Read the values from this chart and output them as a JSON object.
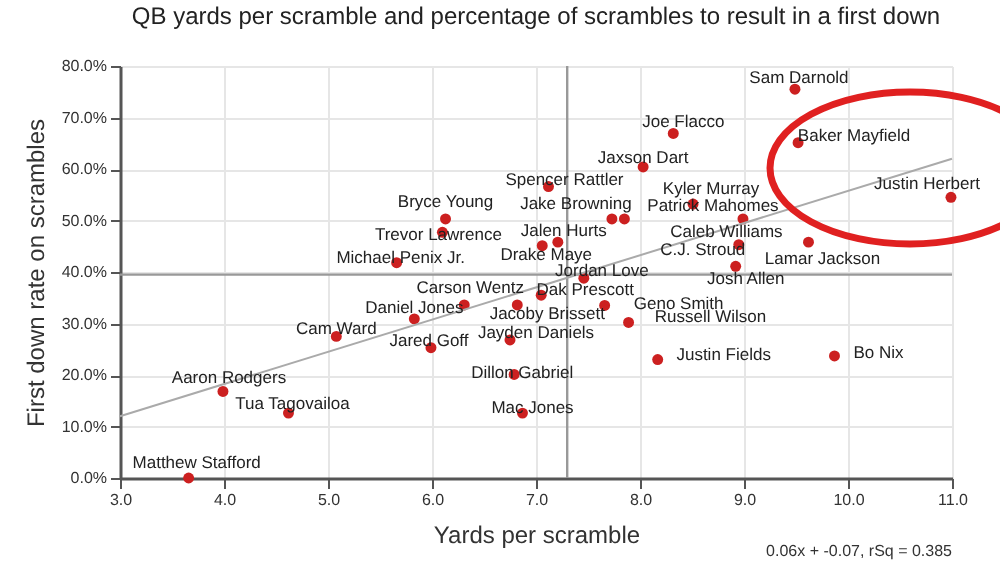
{
  "chart_data": {
    "type": "scatter",
    "title": "QB yards per scramble and percentage of scrambles to result in a first down",
    "xlabel": "Yards per scramble",
    "ylabel": "First down rate on scrambles",
    "x": [
      9.49,
      8.32,
      9.52,
      8.03,
      10.99,
      7.12,
      8.51,
      7.73,
      7.85,
      8.99,
      8.95,
      8.92,
      9.62,
      6.13,
      6.1,
      7.21,
      7.06,
      5.66,
      7.46,
      6.31,
      7.05,
      7.66,
      5.83,
      6.82,
      7.89,
      6.75,
      5.08,
      5.99,
      8.17,
      9.87,
      6.79,
      3.99,
      6.87,
      4.62,
      3.66
    ],
    "series": [
      {
        "color": "#cc2020",
        "values": [
          75.5,
          66.9,
          65.1,
          60.4,
          54.5,
          56.6,
          53.2,
          50.3,
          50.3,
          50.3,
          45.3,
          41.1,
          45.8,
          50.3,
          47.7,
          45.8,
          45.1,
          41.8,
          38.8,
          33.6,
          35.5,
          33.5,
          30.9,
          33.6,
          30.2,
          26.8,
          27.5,
          25.3,
          23.0,
          23.7,
          20.1,
          16.8,
          12.6,
          12.6,
          0.0
        ]
      },
      {
        "type": "line",
        "marker": "none",
        "color": "#aaaaaa",
        "x": [
          3,
          11
        ],
        "values": [
          12,
          62
        ]
      }
    ],
    "annotations": [
      {
        "text": "Sam Darnold",
        "x": 9.49,
        "y": 75.5
      },
      {
        "text": "Joe Flacco",
        "x": 8.32,
        "y": 66.9
      },
      {
        "text": "Baker Mayfield",
        "x": 9.52,
        "y": 65.1
      },
      {
        "text": "Jaxson Dart",
        "x": 8.03,
        "y": 60.4
      },
      {
        "text": "Justin Herbert",
        "x": 10.99,
        "y": 54.5
      },
      {
        "text": "Spencer Rattler",
        "x": 7.12,
        "y": 56.6
      },
      {
        "text": "Kyler Murray",
        "x": 8.51,
        "y": 53.2
      },
      {
        "text": "Jake Browning",
        "x": 7.73,
        "y": 50.3
      },
      {
        "text": "Caleb Williams",
        "x": 7.85,
        "y": 50.3
      },
      {
        "text": "Patrick Mahomes",
        "x": 8.99,
        "y": 50.3
      },
      {
        "text": "C.J. Stroud",
        "x": 8.95,
        "y": 45.3
      },
      {
        "text": "Josh Allen",
        "x": 8.92,
        "y": 41.1
      },
      {
        "text": "Lamar Jackson",
        "x": 9.62,
        "y": 45.8
      },
      {
        "text": "Bryce Young",
        "x": 6.13,
        "y": 50.3
      },
      {
        "text": "Trevor Lawrence",
        "x": 6.1,
        "y": 47.7
      },
      {
        "text": "Jalen Hurts",
        "x": 7.21,
        "y": 45.8
      },
      {
        "text": "Drake Maye",
        "x": 7.06,
        "y": 45.1
      },
      {
        "text": "Michael Penix Jr.",
        "x": 5.66,
        "y": 41.8
      },
      {
        "text": "Jordan Love",
        "x": 7.46,
        "y": 38.8
      },
      {
        "text": "Carson Wentz",
        "x": 6.31,
        "y": 33.6
      },
      {
        "text": "Dak Prescott",
        "x": 7.05,
        "y": 35.5
      },
      {
        "text": "Geno Smith",
        "x": 7.66,
        "y": 33.5
      },
      {
        "text": "Daniel Jones",
        "x": 5.83,
        "y": 30.9
      },
      {
        "text": "Jacoby Brissett",
        "x": 6.82,
        "y": 33.6
      },
      {
        "text": "Russell Wilson",
        "x": 7.89,
        "y": 30.2
      },
      {
        "text": "Jayden Daniels",
        "x": 6.75,
        "y": 26.8
      },
      {
        "text": "Cam Ward",
        "x": 5.08,
        "y": 27.5
      },
      {
        "text": "Jared Goff",
        "x": 5.99,
        "y": 25.3
      },
      {
        "text": "Justin Fields",
        "x": 8.17,
        "y": 23.0
      },
      {
        "text": "Bo Nix",
        "x": 9.87,
        "y": 23.7
      },
      {
        "text": "Dillon Gabriel",
        "x": 6.79,
        "y": 20.1
      },
      {
        "text": "Aaron Rodgers",
        "x": 3.99,
        "y": 16.8
      },
      {
        "text": "Mac Jones",
        "x": 6.87,
        "y": 12.6
      },
      {
        "text": "Tua Tagovailoa",
        "x": 4.62,
        "y": 12.6
      },
      {
        "text": "Matthew Stafford",
        "x": 3.66,
        "y": 0.0
      },
      "0.06x + -0.07, rSq = 0.385"
    ],
    "ref_lines": [
      {
        "axis": "x",
        "value": 7.3,
        "color": "#999999"
      },
      {
        "axis": "y",
        "value": 39.5,
        "color": "#999999"
      }
    ],
    "xlim": [
      3,
      11
    ],
    "ylim": [
      0,
      80
    ],
    "xticks": [
      {
        "value": 3,
        "label": "3.0"
      },
      {
        "value": 4,
        "label": "4.0"
      },
      {
        "value": 5,
        "label": "5.0"
      },
      {
        "value": 6,
        "label": "6.0"
      },
      {
        "value": 7,
        "label": "7.0"
      },
      {
        "value": 8,
        "label": "8.0"
      },
      {
        "value": 9,
        "label": "9.0"
      },
      {
        "value": 10,
        "label": "10.0"
      },
      {
        "value": 11,
        "label": "11.0"
      }
    ],
    "yticks": [
      {
        "value": 0,
        "label": "0.0%"
      },
      {
        "value": 10,
        "label": "10.0%"
      },
      {
        "value": 20,
        "label": "20.0%"
      },
      {
        "value": 30,
        "label": "30.0%"
      },
      {
        "value": 40,
        "label": "40.0%"
      },
      {
        "value": 50,
        "label": "50.0%"
      },
      {
        "value": 60,
        "label": "60.0%"
      },
      {
        "value": 70,
        "label": "70.0%"
      },
      {
        "value": 80,
        "label": "80.0%"
      }
    ],
    "grid": true,
    "marker": "circle",
    "line_style": "solid"
  }
}
